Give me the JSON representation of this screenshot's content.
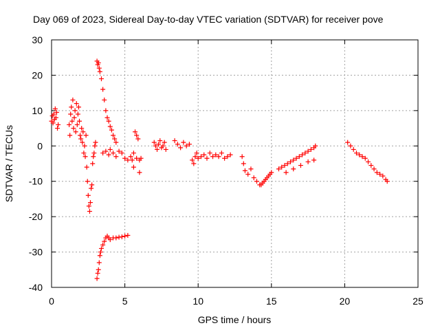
{
  "chart_data": {
    "type": "scatter",
    "title": "Day 069 of 2023, Sidereal Day-to-day VTEC variation (SDTVAR) for receiver pove",
    "xlabel": "GPS time / hours",
    "ylabel": "SDTVAR / TECUs",
    "xlim": [
      0,
      25
    ],
    "ylim": [
      -40,
      30
    ],
    "xticks": [
      "0",
      "5",
      "10",
      "15",
      "20",
      "25"
    ],
    "yticks": [
      "30",
      "20",
      "10",
      "0",
      "-10",
      "-20",
      "-30",
      "-40"
    ],
    "grid": true,
    "marker": "+",
    "color": "#ff0000",
    "series": [
      {
        "name": "SDTVAR",
        "x": [
          0.0,
          0.05,
          0.1,
          0.15,
          0.2,
          0.25,
          0.3,
          0.35,
          0.4,
          0.45,
          1.2,
          1.25,
          1.3,
          1.35,
          1.4,
          1.45,
          1.5,
          1.55,
          1.6,
          1.65,
          1.7,
          1.75,
          1.8,
          1.85,
          1.9,
          1.95,
          2.0,
          2.05,
          2.1,
          2.15,
          2.2,
          2.25,
          2.3,
          2.35,
          2.4,
          2.45,
          2.5,
          2.55,
          2.6,
          2.65,
          2.7,
          2.75,
          2.8,
          2.85,
          2.9,
          2.95,
          3.0,
          3.1,
          3.15,
          3.2,
          3.25,
          3.3,
          3.4,
          3.5,
          3.6,
          3.7,
          3.8,
          3.9,
          4.0,
          4.1,
          4.2,
          4.3,
          4.4,
          3.1,
          3.15,
          3.2,
          3.25,
          3.3,
          3.35,
          3.4,
          3.5,
          3.6,
          3.7,
          3.8,
          3.9,
          4.0,
          4.2,
          4.4,
          4.6,
          4.8,
          5.0,
          5.2,
          3.5,
          3.7,
          3.9,
          4.0,
          4.2,
          4.4,
          4.6,
          4.8,
          5.0,
          5.2,
          5.4,
          5.6,
          5.8,
          6.0,
          6.1,
          5.7,
          5.8,
          5.9,
          6.0,
          5.5,
          5.6,
          7.0,
          7.1,
          7.2,
          7.3,
          7.4,
          7.5,
          7.6,
          7.7,
          7.8,
          8.4,
          8.6,
          8.8,
          9.0,
          9.2,
          9.4,
          9.6,
          9.7,
          9.8,
          9.9,
          10.0,
          10.2,
          10.4,
          10.6,
          10.8,
          11.0,
          11.2,
          11.4,
          11.6,
          11.8,
          12.0,
          12.2,
          13.0,
          13.1,
          13.2,
          13.4,
          13.6,
          13.8,
          14.0,
          14.2,
          14.3,
          14.4,
          14.5,
          14.6,
          14.7,
          14.8,
          14.9,
          15.0,
          15.5,
          15.7,
          15.9,
          16.1,
          16.3,
          16.5,
          16.7,
          16.9,
          17.1,
          17.3,
          17.5,
          17.7,
          17.9,
          18.0,
          16.0,
          16.5,
          17.0,
          17.5,
          17.9,
          20.2,
          20.4,
          20.6,
          20.8,
          21.0,
          21.2,
          21.4,
          21.6,
          21.8,
          22.0,
          22.2,
          22.4,
          22.6,
          22.8,
          22.9
        ],
        "y": [
          7.0,
          8.5,
          6.5,
          9.0,
          7.5,
          10.5,
          8.0,
          9.5,
          5.0,
          6.0,
          6.0,
          3.0,
          9.0,
          11.0,
          7.0,
          13.0,
          5.0,
          8.0,
          10.0,
          4.0,
          12.0,
          6.0,
          9.0,
          11.0,
          7.0,
          3.0,
          2.0,
          5.0,
          1.0,
          4.0,
          -2.0,
          0.0,
          -3.0,
          3.0,
          -6.0,
          -10.0,
          -14.0,
          -17.0,
          -18.5,
          -16.0,
          -12.0,
          -11.0,
          -5.0,
          -3.0,
          -2.0,
          0.0,
          1.0,
          24.0,
          23.0,
          23.5,
          22.0,
          21.0,
          19.0,
          16.0,
          13.0,
          10.0,
          8.0,
          7.0,
          5.5,
          4.5,
          3.0,
          2.0,
          1.0,
          -37.5,
          -36.0,
          -35.0,
          -33.0,
          -31.0,
          -30.0,
          -29.0,
          -28.0,
          -27.0,
          -26.0,
          -25.5,
          -26.0,
          -26.5,
          -26.0,
          -26.0,
          -25.8,
          -25.7,
          -25.5,
          -25.3,
          -2.0,
          -1.5,
          -2.5,
          -1.0,
          -2.0,
          -3.0,
          -1.5,
          -2.0,
          -3.5,
          -4.0,
          -3.0,
          -2.0,
          -3.5,
          -4.0,
          -3.5,
          4.0,
          3.0,
          2.0,
          -7.5,
          -4.0,
          -6.0,
          1.0,
          0.0,
          -1.0,
          0.5,
          1.5,
          -0.5,
          0.0,
          1.0,
          -1.0,
          1.5,
          0.5,
          -0.5,
          1.0,
          0.0,
          0.5,
          -4.0,
          -5.0,
          -3.0,
          -2.0,
          -3.5,
          -3.0,
          -2.5,
          -3.5,
          -2.0,
          -3.0,
          -2.5,
          -3.0,
          -2.0,
          -3.5,
          -3.0,
          -2.5,
          -3.0,
          -5.0,
          -7.0,
          -8.0,
          -6.5,
          -9.0,
          -10.0,
          -11.0,
          -11.0,
          -10.5,
          -10.0,
          -9.5,
          -9.0,
          -8.5,
          -8.0,
          -7.5,
          -6.5,
          -6.0,
          -5.5,
          -5.0,
          -4.5,
          -4.0,
          -3.5,
          -3.0,
          -2.5,
          -2.0,
          -1.5,
          -1.0,
          -0.5,
          0.0,
          -7.5,
          -6.5,
          -5.5,
          -4.5,
          -4.0,
          1.0,
          0.0,
          -1.0,
          -2.0,
          -2.5,
          -3.0,
          -3.5,
          -4.5,
          -5.5,
          -6.5,
          -7.5,
          -8.0,
          -8.5,
          -9.5,
          -10.0
        ]
      }
    ]
  }
}
